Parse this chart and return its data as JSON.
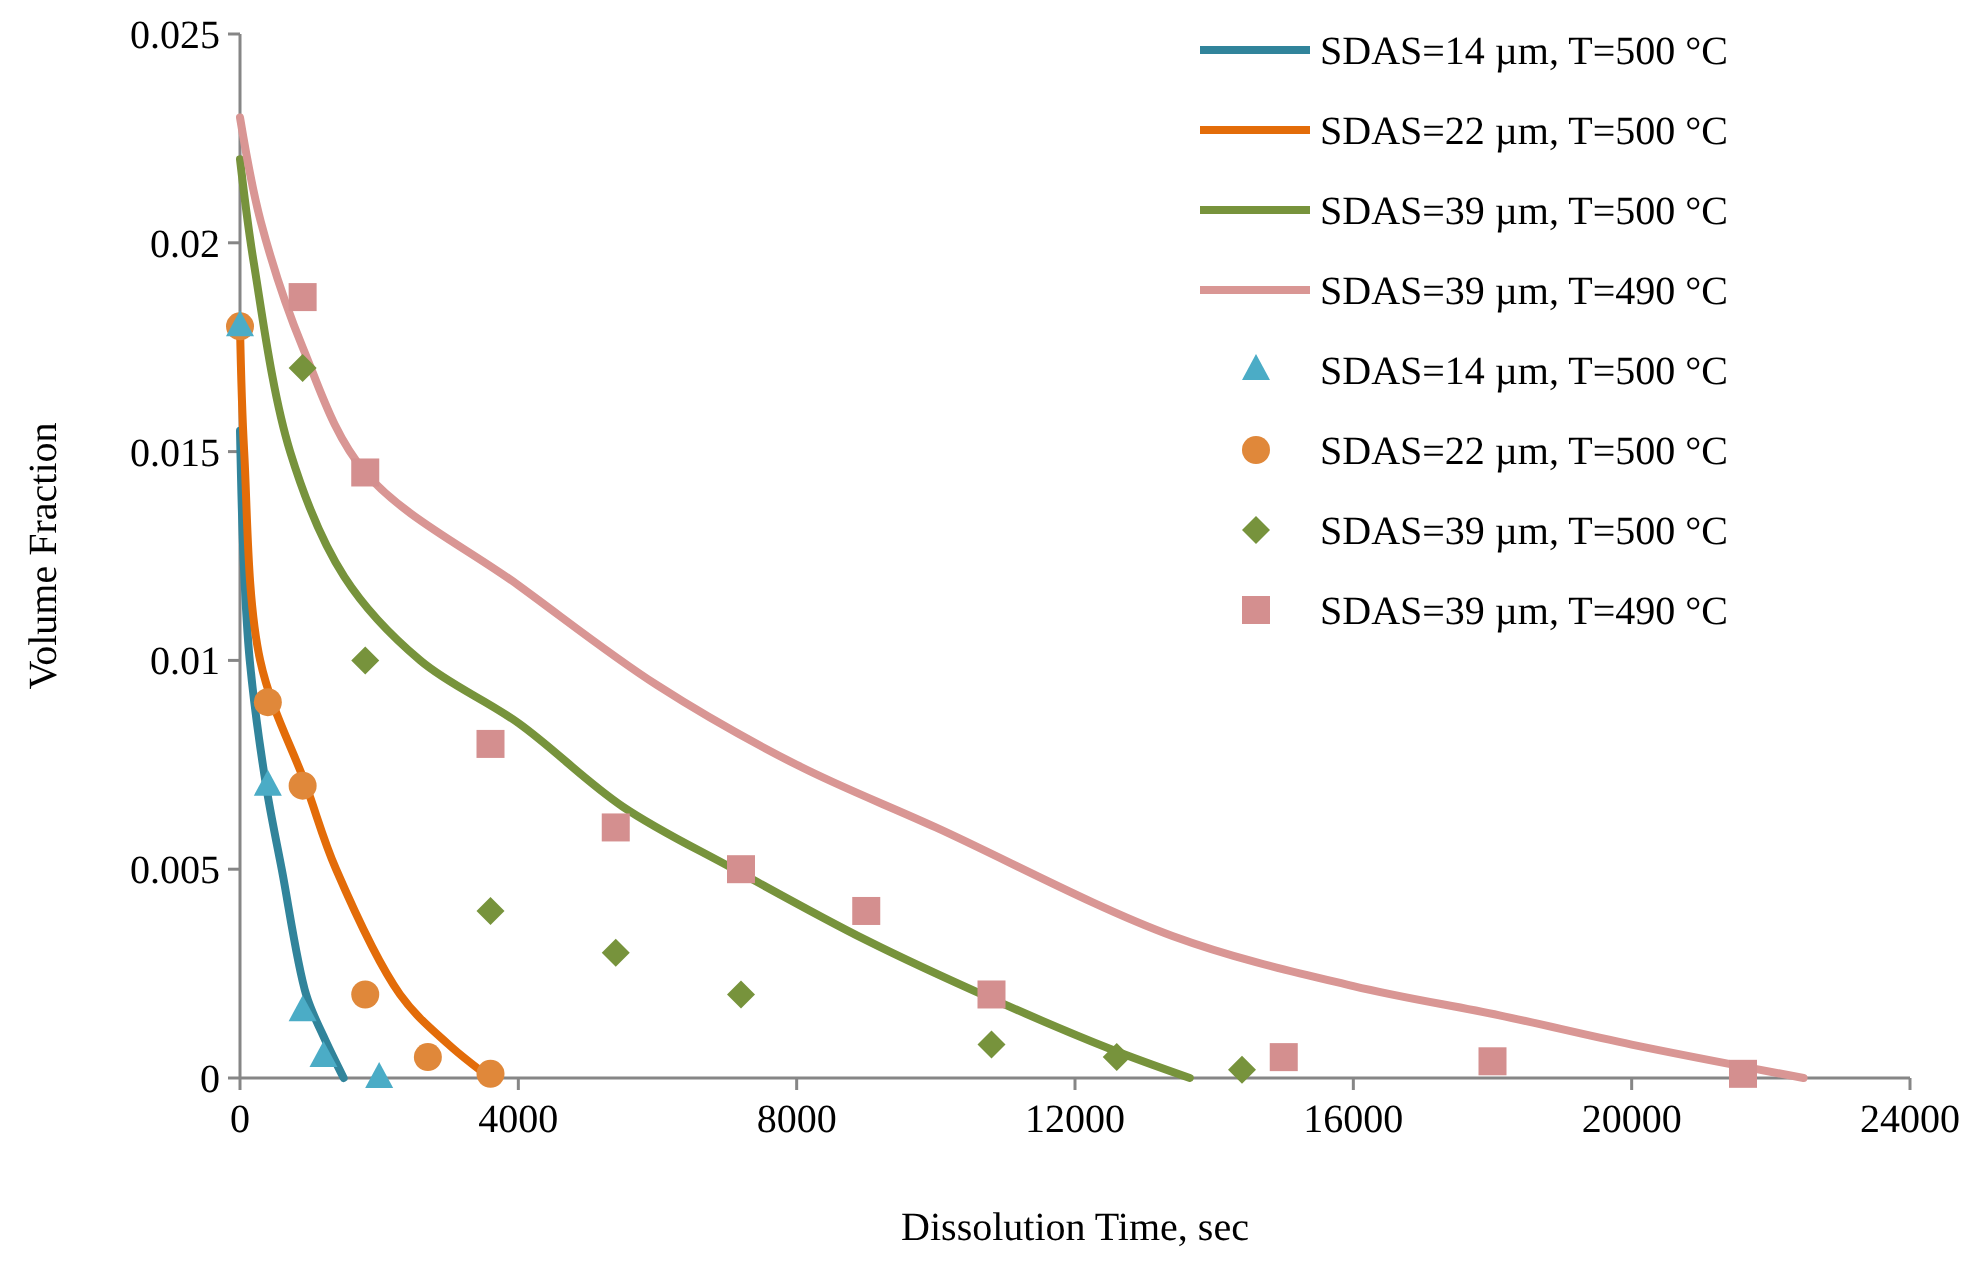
{
  "chart_data": {
    "type": "line",
    "xlabel": "Dissolution Time, sec",
    "ylabel": "Volume Fraction",
    "xlim": [
      0,
      24000
    ],
    "xticks": [
      0,
      4000,
      8000,
      12000,
      16000,
      20000,
      24000
    ],
    "ylim": [
      0,
      0.025
    ],
    "yticks": [
      0,
      0.005,
      0.01,
      0.015,
      0.02,
      0.025
    ],
    "grid": false,
    "legend": "top right",
    "series": [
      {
        "name": "SDAS=14 µm, T=500 °C",
        "color": "#31849b",
        "line_style": "solid",
        "marker": "none",
        "x": [
          0,
          50,
          140,
          375,
          600,
          950,
          1200,
          1490
        ],
        "values": [
          0.0155,
          0.0125,
          0.01,
          0.007,
          0.005,
          0.002,
          0.001,
          0
        ]
      },
      {
        "name": "SDAS=22 µm, T=500 °C",
        "color": "#e36c09",
        "line_style": "solid",
        "marker": "none",
        "x": [
          0,
          60,
          290,
          950,
          1380,
          2300,
          3000,
          3600
        ],
        "values": [
          0.018,
          0.015,
          0.01,
          0.007,
          0.005,
          0.002,
          0.0008,
          0
        ]
      },
      {
        "name": "SDAS=39 µm, T=500 °C",
        "color": "#77933c",
        "line_style": "solid",
        "marker": "none",
        "x": [
          0,
          200,
          720,
          1500,
          2590,
          4000,
          5500,
          7100,
          9000,
          10800,
          12500,
          13650
        ],
        "values": [
          0.022,
          0.0195,
          0.015,
          0.012,
          0.01,
          0.0085,
          0.0065,
          0.005,
          0.0033,
          0.0019,
          0.0007,
          0
        ]
      },
      {
        "name": "SDAS=39 µm, T=490 °C",
        "color": "#d99694",
        "line_style": "solid",
        "marker": "none",
        "x": [
          0,
          300,
          900,
          1800,
          4000,
          6000,
          8000,
          10000,
          13400,
          16000,
          18100,
          20000,
          22470
        ],
        "values": [
          0.023,
          0.0205,
          0.0175,
          0.0145,
          0.0118,
          0.0094,
          0.0075,
          0.006,
          0.0034,
          0.0022,
          0.0015,
          0.0008,
          0
        ]
      },
      {
        "type": "scatter",
        "name": "SDAS=14 µm, T=500 °C",
        "color": "#4bacc6",
        "marker": "triangle",
        "x": [
          0,
          400,
          900,
          1200,
          2000
        ],
        "values": [
          0.018,
          0.007,
          0.0016,
          0.0005,
          0
        ]
      },
      {
        "type": "scatter",
        "name": "SDAS=22 µm, T=500 °C",
        "color": "#e0883a",
        "marker": "circle",
        "x": [
          0,
          400,
          900,
          1800,
          2700,
          3600
        ],
        "values": [
          0.018,
          0.009,
          0.007,
          0.002,
          0.0005,
          0.0001
        ]
      },
      {
        "type": "scatter",
        "name": "SDAS=39 µm, T=500 °C",
        "color": "#77933c",
        "marker": "diamond",
        "x": [
          900,
          1800,
          3600,
          5400,
          7200,
          10800,
          12600,
          14400
        ],
        "values": [
          0.017,
          0.01,
          0.004,
          0.003,
          0.002,
          0.0008,
          0.0005,
          0.0002
        ]
      },
      {
        "type": "scatter",
        "name": "SDAS=39 µm, T=490 °C",
        "color": "#d48f8f",
        "marker": "square",
        "x": [
          900,
          1800,
          3600,
          5400,
          7200,
          9000,
          10800,
          15000,
          18000,
          21600
        ],
        "values": [
          0.0187,
          0.0145,
          0.008,
          0.006,
          0.005,
          0.004,
          0.002,
          0.0005,
          0.0004,
          0.0001
        ]
      }
    ]
  }
}
